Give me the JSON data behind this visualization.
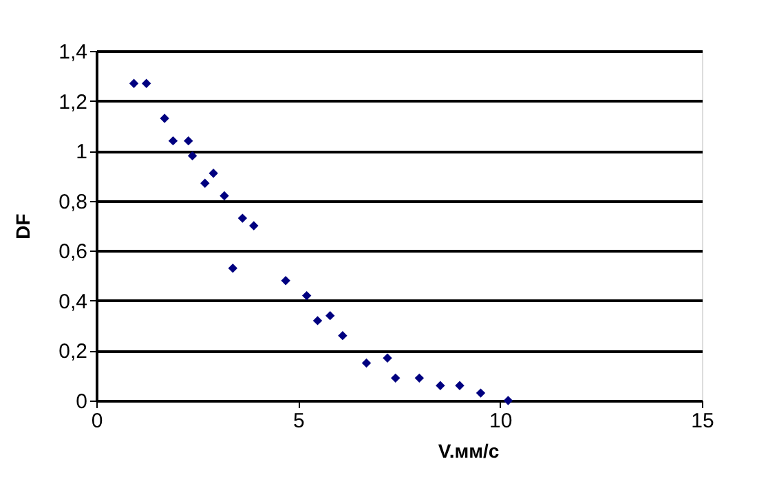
{
  "chart_data": {
    "type": "scatter",
    "xlabel": "V.мм/с",
    "ylabel": "DF",
    "marker": "diamond",
    "grid": "y",
    "legend": false,
    "x": [
      0.93,
      1.24,
      1.69,
      1.9,
      2.28,
      2.38,
      2.69,
      2.9,
      3.17,
      3.38,
      3.62,
      3.9,
      4.69,
      5.21,
      5.48,
      5.79,
      6.1,
      6.69,
      7.21,
      7.41,
      8.0,
      8.52,
      9.0,
      9.52,
      10.2
    ],
    "series": [
      {
        "color": "#000080",
        "values": [
          1.27,
          1.27,
          1.13,
          1.04,
          1.04,
          0.98,
          0.87,
          0.91,
          0.82,
          0.53,
          0.73,
          0.7,
          0.48,
          0.42,
          0.32,
          0.34,
          0.26,
          0.15,
          0.17,
          0.09,
          0.09,
          0.06,
          0.06,
          0.03,
          0.0
        ]
      }
    ],
    "xlim": [
      0,
      15
    ],
    "xticks": [
      0,
      5,
      10,
      15
    ],
    "ylim": [
      0,
      1.4
    ],
    "yticks": [
      0,
      {
        "value": 0.2,
        "label": "0,2"
      },
      {
        "value": 0.4,
        "label": "0,4"
      },
      {
        "value": 0.6,
        "label": "0,6"
      },
      {
        "value": 0.8,
        "label": "0,8"
      },
      1,
      {
        "value": 1.2,
        "label": "1,2"
      },
      {
        "value": 1.4,
        "label": "1,4"
      }
    ]
  }
}
